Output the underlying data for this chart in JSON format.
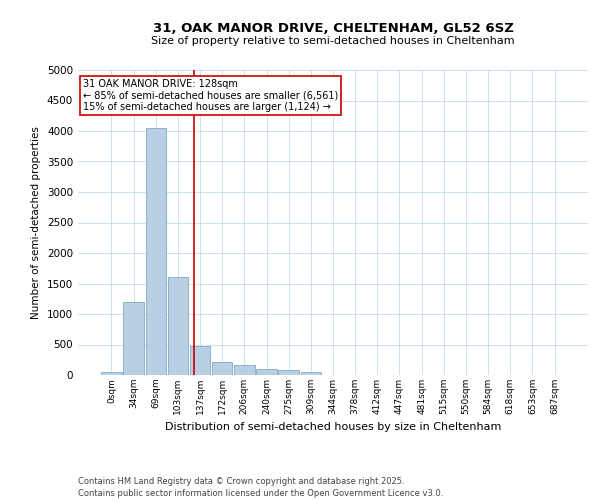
{
  "title": "31, OAK MANOR DRIVE, CHELTENHAM, GL52 6SZ",
  "subtitle": "Size of property relative to semi-detached houses in Cheltenham",
  "xlabel": "Distribution of semi-detached houses by size in Cheltenham",
  "ylabel": "Number of semi-detached properties",
  "footnote": "Contains HM Land Registry data © Crown copyright and database right 2025.\nContains public sector information licensed under the Open Government Licence v3.0.",
  "bar_labels": [
    "0sqm",
    "34sqm",
    "69sqm",
    "103sqm",
    "137sqm",
    "172sqm",
    "206sqm",
    "240sqm",
    "275sqm",
    "309sqm",
    "344sqm",
    "378sqm",
    "412sqm",
    "447sqm",
    "481sqm",
    "515sqm",
    "550sqm",
    "584sqm",
    "618sqm",
    "653sqm",
    "687sqm"
  ],
  "bar_values": [
    50,
    1200,
    4050,
    1600,
    480,
    220,
    160,
    100,
    75,
    55,
    0,
    0,
    0,
    0,
    0,
    0,
    0,
    0,
    0,
    0,
    0
  ],
  "bar_color": "#b8cfe4",
  "bar_edge_color": "#6a9fc0",
  "annotation_title": "31 OAK MANOR DRIVE: 128sqm",
  "annotation_line1": "← 85% of semi-detached houses are smaller (6,561)",
  "annotation_line2": "15% of semi-detached houses are larger (1,124) →",
  "annotation_box_color": "#cc0000",
  "property_line_color": "#cc0000",
  "ylim": [
    0,
    5000
  ],
  "yticks": [
    0,
    500,
    1000,
    1500,
    2000,
    2500,
    3000,
    3500,
    4000,
    4500,
    5000
  ],
  "background_color": "#ffffff",
  "grid_color": "#c8daea"
}
